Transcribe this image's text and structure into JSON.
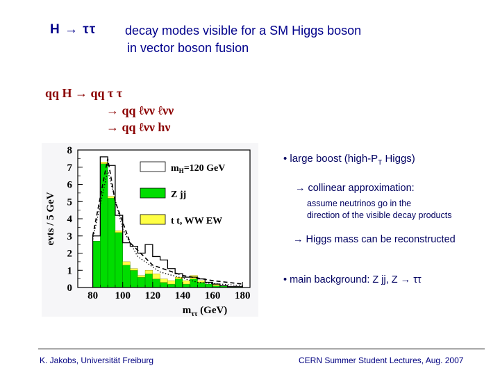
{
  "header": {
    "process_short": "H → ττ",
    "title_line1": "decay modes visible for a SM Higgs boson",
    "title_line2": "in vector boson fusion"
  },
  "channels": {
    "line1": "qq H  → qq τ τ",
    "line2": "→ qq  ℓνν  ℓνν",
    "line3": "→ qq  ℓνν  hν"
  },
  "bullets": {
    "b1": "• large boost (high-P",
    "b1_sub": "T",
    "b1_end": " Higgs)",
    "b2": "→  collinear approximation:",
    "b2_detail1": "assume neutrinos go in the",
    "b2_detail2": "direction of the visible decay products",
    "b3": "→  Higgs mass can be reconstructed",
    "b4": "•  main background:  Z jj,   Z → ττ"
  },
  "footer": {
    "left": "K. Jakobs,  Universität Freiburg",
    "right": "CERN Summer Student Lectures,  Aug. 2007"
  },
  "chart_data": {
    "type": "histogram",
    "ylabel": "evts / 5 GeV",
    "xlabel": "m",
    "xlabel_sub": "ττ",
    "xlabel_unit": " (GeV)",
    "xlim": [
      70,
      185
    ],
    "ylim": [
      0,
      8
    ],
    "xticks": [
      80,
      100,
      120,
      140,
      160,
      180
    ],
    "yticks": [
      0,
      1,
      2,
      3,
      4,
      5,
      6,
      7,
      8
    ],
    "bin_width": 5,
    "bin_edges_start": 80,
    "legend": {
      "entries": [
        {
          "label": "m",
          "label_sub": "H",
          "label_end": "=120 GeV",
          "color": "#ffffff"
        },
        {
          "label": "Z jj",
          "color": "#00dd00"
        },
        {
          "label": "t t, WW EW",
          "color": "#ffff44"
        }
      ]
    },
    "series": [
      {
        "name": "Z jj",
        "color": "#00dd00",
        "values": [
          2.7,
          7.2,
          5.2,
          3.2,
          1.3,
          1.0,
          0.6,
          0.8,
          0.5,
          0.3,
          0.2,
          0.5,
          0.2,
          0.5,
          0.3,
          0.2,
          0.1,
          0.1,
          0.05,
          0.05
        ]
      },
      {
        "name": "t t, WW EW",
        "color": "#ffff44",
        "values": [
          0.0,
          0.1,
          0.1,
          0.1,
          0.2,
          0.1,
          0.1,
          0.2,
          0.3,
          0.2,
          0.2,
          0.1,
          0.2,
          0.2,
          0.1,
          0.0,
          0.1,
          0.0,
          0.0,
          0.0
        ]
      },
      {
        "name": "m_H=120 GeV",
        "color": "#000000",
        "values": [
          3.0,
          7.6,
          7.1,
          4.2,
          2.6,
          2.4,
          2.0,
          2.5,
          1.8,
          1.6,
          1.1,
          0.8,
          0.6,
          0.6,
          0.5,
          0.3,
          0.2,
          0.1,
          0.05,
          0.05
        ]
      }
    ],
    "dashed_curve": [
      [
        80,
        3.0
      ],
      [
        90,
        7.5
      ],
      [
        95,
        5.0
      ],
      [
        105,
        2.6
      ],
      [
        120,
        1.3
      ],
      [
        140,
        0.7
      ],
      [
        160,
        0.4
      ],
      [
        180,
        0.2
      ]
    ],
    "dotted_curve": [
      [
        80,
        2.8
      ],
      [
        90,
        6.8
      ],
      [
        100,
        3.4
      ],
      [
        110,
        1.8
      ],
      [
        125,
        0.9
      ],
      [
        150,
        0.3
      ],
      [
        180,
        0.1
      ]
    ]
  }
}
